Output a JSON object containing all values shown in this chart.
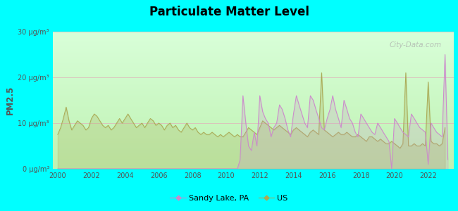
{
  "title": "Particulate Matter Level",
  "ylabel": "PM2.5",
  "xlabel": "",
  "background_color": "#00FFFF",
  "xlim": [
    1999.7,
    2023.5
  ],
  "ylim": [
    0,
    30
  ],
  "yticks": [
    0,
    10,
    20,
    30
  ],
  "ytick_labels": [
    "0 μg/m³",
    "10 μg/m³",
    "20 μg/m³",
    "30 μg/m³"
  ],
  "xticks": [
    2000,
    2002,
    2004,
    2006,
    2008,
    2010,
    2012,
    2014,
    2016,
    2018,
    2020,
    2022
  ],
  "sandy_lake_color": "#cc88cc",
  "us_color": "#aaaa55",
  "watermark": "City-Data.com",
  "legend_labels": [
    "Sandy Lake, PA",
    "US"
  ],
  "us_data_years": [
    2000.0,
    2000.17,
    2000.33,
    2000.5,
    2000.67,
    2000.83,
    2001.0,
    2001.17,
    2001.33,
    2001.5,
    2001.67,
    2001.83,
    2002.0,
    2002.17,
    2002.33,
    2002.5,
    2002.67,
    2002.83,
    2003.0,
    2003.17,
    2003.33,
    2003.5,
    2003.67,
    2003.83,
    2004.0,
    2004.17,
    2004.33,
    2004.5,
    2004.67,
    2004.83,
    2005.0,
    2005.17,
    2005.33,
    2005.5,
    2005.67,
    2005.83,
    2006.0,
    2006.17,
    2006.33,
    2006.5,
    2006.67,
    2006.83,
    2007.0,
    2007.17,
    2007.33,
    2007.5,
    2007.67,
    2007.83,
    2008.0,
    2008.17,
    2008.33,
    2008.5,
    2008.67,
    2008.83,
    2009.0,
    2009.17,
    2009.33,
    2009.5,
    2009.67,
    2009.83,
    2010.0,
    2010.17,
    2010.33,
    2010.5,
    2010.67,
    2010.83,
    2011.0,
    2011.17,
    2011.33,
    2011.5,
    2011.67,
    2011.83,
    2012.0,
    2012.17,
    2012.33,
    2012.5,
    2012.67,
    2012.83,
    2013.0,
    2013.17,
    2013.33,
    2013.5,
    2013.67,
    2013.83,
    2014.0,
    2014.17,
    2014.33,
    2014.5,
    2014.67,
    2014.83,
    2015.0,
    2015.17,
    2015.33,
    2015.5,
    2015.67,
    2015.83,
    2016.0,
    2016.17,
    2016.33,
    2016.5,
    2016.67,
    2016.83,
    2017.0,
    2017.17,
    2017.33,
    2017.5,
    2017.67,
    2017.83,
    2018.0,
    2018.17,
    2018.33,
    2018.5,
    2018.67,
    2018.83,
    2019.0,
    2019.17,
    2019.33,
    2019.5,
    2019.67,
    2019.83,
    2020.0,
    2020.17,
    2020.33,
    2020.5,
    2020.67,
    2020.83,
    2021.0,
    2021.17,
    2021.33,
    2021.5,
    2021.67,
    2021.83,
    2022.0,
    2022.17,
    2022.33,
    2022.5,
    2022.67,
    2022.83,
    2023.0
  ],
  "us_data_values": [
    7.5,
    9.0,
    11.0,
    13.5,
    10.5,
    8.5,
    9.5,
    10.5,
    10.0,
    9.5,
    8.5,
    9.0,
    11.0,
    12.0,
    11.5,
    10.5,
    9.5,
    9.0,
    9.5,
    8.5,
    9.0,
    10.0,
    11.0,
    10.0,
    11.0,
    12.0,
    11.0,
    10.0,
    9.0,
    9.5,
    10.0,
    9.0,
    10.0,
    11.0,
    10.5,
    9.5,
    10.0,
    9.5,
    8.5,
    9.5,
    10.0,
    9.0,
    9.5,
    8.5,
    8.0,
    9.0,
    10.0,
    9.0,
    8.5,
    9.0,
    8.0,
    7.5,
    8.0,
    7.5,
    7.5,
    8.0,
    7.5,
    7.0,
    7.5,
    7.0,
    7.5,
    8.0,
    7.5,
    7.0,
    7.5,
    7.0,
    7.0,
    8.0,
    9.0,
    8.5,
    8.0,
    7.5,
    9.0,
    10.5,
    10.0,
    9.5,
    9.0,
    8.5,
    9.0,
    9.5,
    9.0,
    8.5,
    8.0,
    7.5,
    8.5,
    9.0,
    8.5,
    8.0,
    7.5,
    7.0,
    8.0,
    8.5,
    8.0,
    7.5,
    21.0,
    8.5,
    8.0,
    7.5,
    7.0,
    7.5,
    8.0,
    7.5,
    7.5,
    8.0,
    7.5,
    7.0,
    7.0,
    7.5,
    7.0,
    6.5,
    6.0,
    7.0,
    7.0,
    6.5,
    6.0,
    6.5,
    6.0,
    5.5,
    5.5,
    6.0,
    5.5,
    5.0,
    4.5,
    5.5,
    21.0,
    5.0,
    5.0,
    5.5,
    5.0,
    5.0,
    5.5,
    5.0,
    19.0,
    6.0,
    5.5,
    5.5,
    5.0,
    5.5,
    9.0
  ],
  "sl_data_years": [
    2000.0,
    2001.0,
    2002.0,
    2003.0,
    2004.0,
    2005.0,
    2006.0,
    2007.0,
    2008.0,
    2009.0,
    2010.0,
    2010.5,
    2010.67,
    2010.83,
    2011.0,
    2011.17,
    2011.33,
    2011.5,
    2011.67,
    2011.83,
    2012.0,
    2012.17,
    2012.33,
    2012.5,
    2012.67,
    2012.83,
    2013.0,
    2013.17,
    2013.33,
    2013.5,
    2013.67,
    2013.83,
    2014.0,
    2014.17,
    2014.33,
    2014.5,
    2014.67,
    2014.83,
    2015.0,
    2015.17,
    2015.33,
    2015.5,
    2015.67,
    2015.83,
    2016.0,
    2016.17,
    2016.33,
    2016.5,
    2016.67,
    2016.83,
    2017.0,
    2017.17,
    2017.33,
    2017.5,
    2017.67,
    2017.83,
    2018.0,
    2018.17,
    2018.33,
    2018.5,
    2018.67,
    2018.83,
    2019.0,
    2019.17,
    2019.33,
    2019.5,
    2019.67,
    2019.83,
    2020.0,
    2020.17,
    2020.33,
    2020.5,
    2020.67,
    2020.83,
    2021.0,
    2021.17,
    2021.33,
    2021.5,
    2021.67,
    2021.83,
    2022.0,
    2022.17,
    2022.33,
    2022.5,
    2022.67,
    2022.83,
    2023.0,
    2023.17
  ],
  "sl_data_values": [
    0.0,
    0.0,
    0.0,
    0.0,
    0.0,
    0.0,
    0.0,
    0.0,
    0.0,
    0.0,
    0.0,
    0.0,
    0.0,
    2.0,
    16.0,
    10.0,
    5.0,
    4.0,
    8.0,
    5.0,
    16.0,
    12.5,
    11.0,
    10.0,
    7.0,
    9.0,
    10.0,
    14.0,
    13.0,
    11.0,
    8.5,
    7.0,
    12.0,
    16.0,
    14.0,
    12.0,
    10.0,
    9.0,
    16.0,
    15.0,
    13.0,
    11.0,
    9.0,
    8.5,
    11.0,
    13.0,
    16.0,
    13.0,
    11.0,
    9.0,
    15.0,
    13.0,
    11.0,
    10.0,
    8.0,
    7.0,
    12.0,
    11.0,
    10.0,
    9.0,
    8.0,
    7.5,
    10.0,
    9.0,
    8.0,
    7.0,
    6.0,
    0.0,
    11.0,
    10.0,
    9.0,
    8.0,
    7.5,
    7.0,
    12.0,
    11.0,
    10.0,
    9.0,
    8.5,
    8.0,
    1.0,
    10.0,
    9.0,
    8.0,
    7.5,
    7.0,
    25.0,
    2.0
  ]
}
